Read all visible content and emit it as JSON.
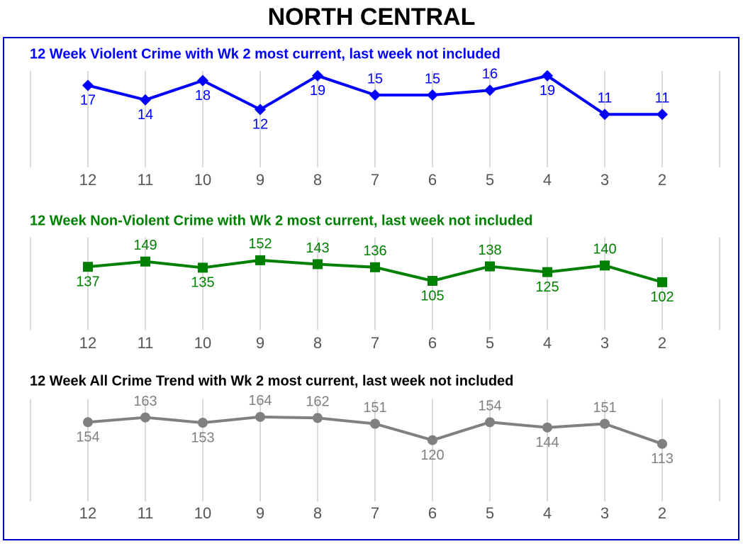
{
  "title": "NORTH CENTRAL",
  "chart_data": [
    {
      "type": "line",
      "title": "12 Week Violent Crime with Wk 2 most current, last week not included",
      "categories": [
        "12",
        "11",
        "10",
        "9",
        "8",
        "7",
        "6",
        "5",
        "4",
        "3",
        "2"
      ],
      "series": [
        {
          "name": "Violent Crime",
          "color": "#0000ff",
          "marker": "diamond",
          "values": [
            17,
            14,
            18,
            12,
            19,
            15,
            15,
            16,
            19,
            11,
            11
          ]
        }
      ],
      "ylim": [
        0,
        20
      ]
    },
    {
      "type": "line",
      "title": "12 Week Non-Violent Crime with Wk 2 most current, last week not included",
      "categories": [
        "12",
        "11",
        "10",
        "9",
        "8",
        "7",
        "6",
        "5",
        "4",
        "3",
        "2"
      ],
      "series": [
        {
          "name": "Non-Violent Crime",
          "color": "#008000",
          "marker": "square",
          "values": [
            137,
            149,
            135,
            152,
            143,
            136,
            105,
            138,
            125,
            140,
            102
          ]
        }
      ],
      "ylim": [
        0,
        210
      ]
    },
    {
      "type": "line",
      "title": "12 Week All Crime Trend with Wk 2 most current, last week not included",
      "categories": [
        "12",
        "11",
        "10",
        "9",
        "8",
        "7",
        "6",
        "5",
        "4",
        "3",
        "2"
      ],
      "series": [
        {
          "name": "All Crime",
          "color": "#808080",
          "marker": "circle",
          "values": [
            154,
            163,
            153,
            164,
            162,
            151,
            120,
            154,
            144,
            151,
            113
          ]
        }
      ],
      "ylim": [
        0,
        200
      ]
    }
  ]
}
